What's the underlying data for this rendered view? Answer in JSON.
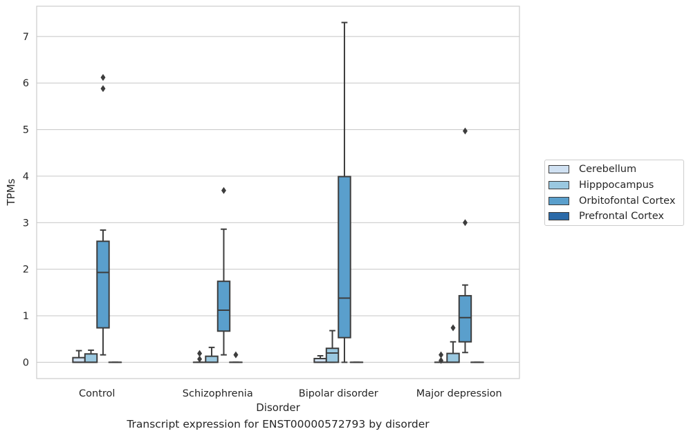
{
  "chart_data": {
    "type": "box",
    "title": "",
    "caption": "Transcript expression for ENST00000572793 by disorder",
    "xlabel": "Disorder",
    "ylabel": "TPMs",
    "ylim": [
      -0.35,
      7.65
    ],
    "yticks": [
      0,
      1,
      2,
      3,
      4,
      5,
      6,
      7
    ],
    "grid": true,
    "legend_position": "right",
    "categories": [
      "Control",
      "Schizophrenia",
      "Bipolar disorder",
      "Major depression"
    ],
    "series": [
      {
        "name": "Cerebellum",
        "color": "#d0e1f2",
        "boxes": [
          {
            "whisker_low": 0,
            "q1": 0,
            "median": 0,
            "q3": 0.1,
            "whisker_high": 0.25,
            "outliers": []
          },
          {
            "whisker_low": 0,
            "q1": 0,
            "median": 0,
            "q3": 0,
            "whisker_high": 0,
            "outliers": [
              0.07,
              0.19
            ]
          },
          {
            "whisker_low": 0,
            "q1": 0,
            "median": 0,
            "q3": 0.08,
            "whisker_high": 0.14,
            "outliers": []
          },
          {
            "whisker_low": 0,
            "q1": 0,
            "median": 0,
            "q3": 0,
            "whisker_high": 0,
            "outliers": [
              0.04,
              0.16
            ]
          }
        ]
      },
      {
        "name": "Hipppocampus",
        "color": "#9ac8e0",
        "boxes": [
          {
            "whisker_low": 0,
            "q1": 0,
            "median": 0,
            "q3": 0.18,
            "whisker_high": 0.26,
            "outliers": []
          },
          {
            "whisker_low": 0,
            "q1": 0,
            "median": 0,
            "q3": 0.13,
            "whisker_high": 0.32,
            "outliers": []
          },
          {
            "whisker_low": 0,
            "q1": 0,
            "median": 0.2,
            "q3": 0.3,
            "whisker_high": 0.68,
            "outliers": []
          },
          {
            "whisker_low": 0,
            "q1": 0,
            "median": 0,
            "q3": 0.19,
            "whisker_high": 0.44,
            "outliers": [
              0.74
            ]
          }
        ]
      },
      {
        "name": "Orbitofontal Cortex",
        "color": "#5a9fcc",
        "boxes": [
          {
            "whisker_low": 0.16,
            "q1": 0.74,
            "median": 1.93,
            "q3": 2.6,
            "whisker_high": 2.84,
            "outliers": [
              5.88,
              6.12
            ]
          },
          {
            "whisker_low": 0.16,
            "q1": 0.67,
            "median": 1.12,
            "q3": 1.74,
            "whisker_high": 2.86,
            "outliers": [
              3.69
            ]
          },
          {
            "whisker_low": 0,
            "q1": 0.53,
            "median": 1.38,
            "q3": 3.99,
            "whisker_high": 7.3,
            "outliers": []
          },
          {
            "whisker_low": 0.21,
            "q1": 0.44,
            "median": 0.96,
            "q3": 1.43,
            "whisker_high": 1.66,
            "outliers": [
              3.0,
              4.97
            ]
          }
        ]
      },
      {
        "name": "Prefrontal Cortex",
        "color": "#2b6aa8",
        "boxes": [
          {
            "whisker_low": 0,
            "q1": 0,
            "median": 0,
            "q3": 0,
            "whisker_high": 0,
            "outliers": []
          },
          {
            "whisker_low": 0,
            "q1": 0,
            "median": 0,
            "q3": 0,
            "whisker_high": 0,
            "outliers": [
              0.16
            ]
          },
          {
            "whisker_low": 0,
            "q1": 0,
            "median": 0,
            "q3": 0,
            "whisker_high": 0,
            "outliers": []
          },
          {
            "whisker_low": 0,
            "q1": 0,
            "median": 0,
            "q3": 0,
            "whisker_high": 0,
            "outliers": []
          }
        ]
      }
    ]
  }
}
